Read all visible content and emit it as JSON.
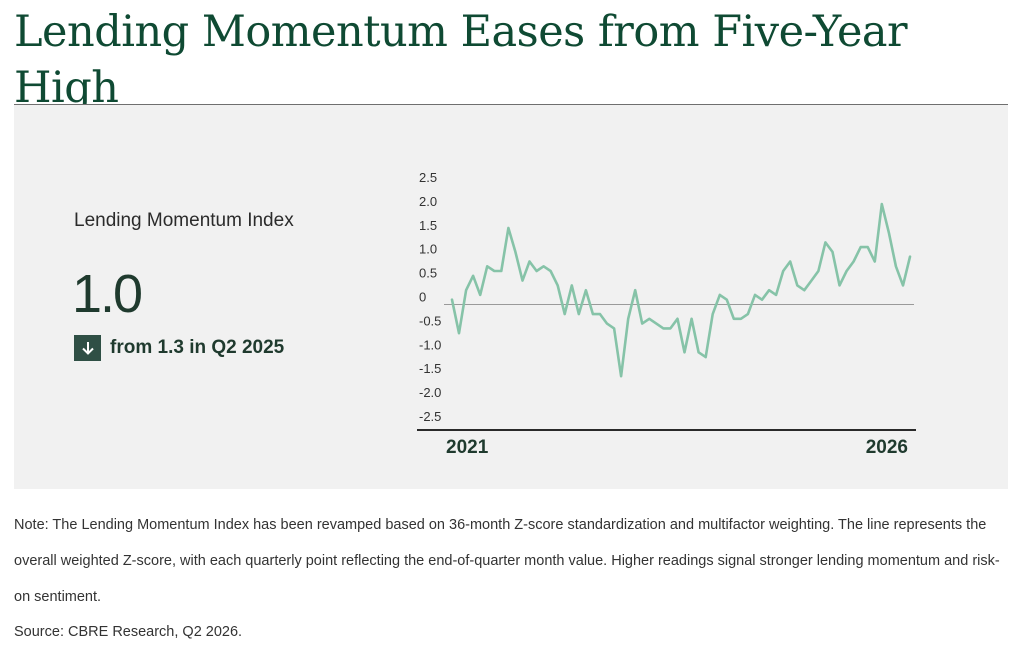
{
  "title": "Lending Momentum Eases from Five-Year High",
  "kpi": {
    "label": "Lending Momentum Index",
    "value": "1.0",
    "change_text": "from 1.3 in Q2 2025",
    "change_direction": "down"
  },
  "colors": {
    "title": "#0f4a33",
    "line": "#86c3a8",
    "panel_bg": "#f1f1f1",
    "arrow_bg": "#2f4f45"
  },
  "chart_data": {
    "type": "line",
    "title": "",
    "xlabel": "",
    "ylabel": "",
    "x_tick_labels": [
      "2021",
      "2026"
    ],
    "y_tick_labels": [
      "2.5",
      "2.0",
      "1.5",
      "1.0",
      "0.5",
      "0",
      "-0.5",
      "-1.0",
      "-1.5",
      "-2.0",
      "-2.5"
    ],
    "ylim": [
      -2.5,
      2.5
    ],
    "grid": false,
    "series": [
      {
        "values": [
          0.1,
          -0.6,
          0.3,
          0.6,
          0.2,
          0.8,
          0.7,
          0.7,
          1.6,
          1.1,
          0.5,
          0.9,
          0.7,
          0.8,
          0.7,
          0.4,
          -0.2,
          0.4,
          -0.2,
          0.3,
          -0.2,
          -0.2,
          -0.4,
          -0.5,
          -1.5,
          -0.3,
          0.3,
          -0.4,
          -0.3,
          -0.4,
          -0.5,
          -0.5,
          -0.3,
          -1.0,
          -0.3,
          -1.0,
          -1.1,
          -0.2,
          0.2,
          0.1,
          -0.3,
          -0.3,
          -0.2,
          0.2,
          0.1,
          0.3,
          0.2,
          0.7,
          0.9,
          0.4,
          0.3,
          0.5,
          0.7,
          1.3,
          1.1,
          0.4,
          0.7,
          0.9,
          1.2,
          1.2,
          0.9,
          2.1,
          1.5,
          0.8,
          0.4,
          1.0
        ]
      }
    ]
  },
  "note": "Note: The Lending Momentum Index has been revamped based on 36-month Z-score standardization and multifactor weighting. The line represents the overall weighted Z-score, with each quarterly point reflecting the end-of-quarter month value. Higher readings signal stronger lending momentum and risk-on sentiment.",
  "source": "Source: CBRE Research, Q2 2026."
}
